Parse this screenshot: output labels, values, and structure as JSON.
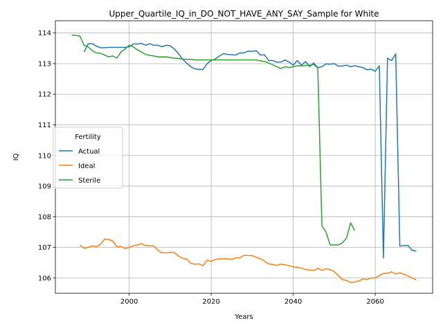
{
  "chart_data": {
    "type": "line",
    "title": "Upper_Quartile_IQ_in_DO_NOT_HAVE_ANY_SAY_Sample for White",
    "xlabel": "Years",
    "ylabel": "IQ",
    "xlim": [
      1982,
      2074
    ],
    "ylim": [
      105.5,
      114.4
    ],
    "xticks": [
      2000,
      2020,
      2040,
      2060
    ],
    "yticks": [
      106,
      107,
      108,
      109,
      110,
      111,
      112,
      113,
      114
    ],
    "grid": true,
    "legend": {
      "title": "Fertility",
      "position": "center-left"
    },
    "series": [
      {
        "name": "Actual",
        "color": "#1f77b4",
        "x": [
          1989,
          1990,
          1991,
          1992,
          1993,
          1994,
          1995,
          1996,
          1997,
          1998,
          1999,
          2000,
          2001,
          2002,
          2003,
          2004,
          2005,
          2006,
          2007,
          2008,
          2009,
          2010,
          2011,
          2012,
          2013,
          2014,
          2015,
          2016,
          2017,
          2018,
          2019,
          2020,
          2021,
          2022,
          2023,
          2024,
          2025,
          2026,
          2027,
          2028,
          2029,
          2030,
          2031,
          2032,
          2033,
          2034,
          2035,
          2036,
          2037,
          2038,
          2039,
          2040,
          2041,
          2042,
          2043,
          2044,
          2045,
          2046,
          2047,
          2048,
          2049,
          2050,
          2051,
          2052,
          2053,
          2054,
          2055,
          2056,
          2057,
          2058,
          2059,
          2060,
          2061,
          2062,
          2063,
          2064,
          2065,
          2066,
          2067,
          2068,
          2069,
          2070
        ],
        "y": [
          113.38,
          113.65,
          113.65,
          113.57,
          113.52,
          113.52,
          113.53,
          113.53,
          113.53,
          113.53,
          113.53,
          113.55,
          113.64,
          113.64,
          113.66,
          113.6,
          113.65,
          113.6,
          113.6,
          113.55,
          113.6,
          113.58,
          113.48,
          113.33,
          113.15,
          113.02,
          112.9,
          112.83,
          112.81,
          112.81,
          113.0,
          113.1,
          113.15,
          113.25,
          113.33,
          113.3,
          113.29,
          113.28,
          113.35,
          113.35,
          113.41,
          113.4,
          113.42,
          113.28,
          113.29,
          113.1,
          113.1,
          113.05,
          113.05,
          113.12,
          113.05,
          112.95,
          113.1,
          112.95,
          113.07,
          112.9,
          113.02,
          112.87,
          112.9,
          112.99,
          112.98,
          113.0,
          112.92,
          112.92,
          112.95,
          112.9,
          112.93,
          112.9,
          112.87,
          112.8,
          112.82,
          112.75,
          112.93,
          106.65,
          113.18,
          113.1,
          113.32,
          107.04,
          107.06,
          107.06,
          106.9,
          106.88
        ]
      },
      {
        "name": "Ideal",
        "color": "#ff7f0e",
        "x": [
          1988,
          1989,
          1990,
          1991,
          1992,
          1993,
          1994,
          1995,
          1996,
          1997,
          1998,
          1999,
          2000,
          2001,
          2002,
          2003,
          2004,
          2005,
          2006,
          2007,
          2008,
          2009,
          2010,
          2011,
          2012,
          2013,
          2014,
          2015,
          2016,
          2017,
          2018,
          2019,
          2020,
          2021,
          2022,
          2023,
          2024,
          2025,
          2026,
          2027,
          2028,
          2029,
          2030,
          2031,
          2032,
          2033,
          2034,
          2035,
          2036,
          2037,
          2038,
          2039,
          2040,
          2041,
          2042,
          2043,
          2044,
          2045,
          2046,
          2047,
          2048,
          2049,
          2050,
          2051,
          2052,
          2053,
          2054,
          2055,
          2056,
          2057,
          2058,
          2059,
          2060,
          2061,
          2062,
          2063,
          2064,
          2065,
          2066,
          2067,
          2068,
          2069,
          2070
        ],
        "y": [
          107.07,
          106.97,
          107.0,
          107.05,
          107.02,
          107.1,
          107.27,
          107.26,
          107.2,
          107.02,
          107.03,
          106.96,
          107.0,
          107.05,
          107.08,
          107.12,
          107.06,
          107.05,
          107.05,
          106.9,
          106.82,
          106.82,
          106.83,
          106.83,
          106.72,
          106.64,
          106.62,
          106.48,
          106.45,
          106.46,
          106.4,
          106.58,
          106.54,
          106.6,
          106.63,
          106.62,
          106.63,
          106.6,
          106.66,
          106.66,
          106.74,
          106.73,
          106.73,
          106.67,
          106.63,
          106.55,
          106.46,
          106.44,
          106.41,
          106.45,
          106.43,
          106.4,
          106.36,
          106.35,
          106.32,
          106.28,
          106.26,
          106.24,
          106.32,
          106.25,
          106.3,
          106.27,
          106.21,
          106.08,
          105.95,
          105.92,
          105.85,
          105.87,
          105.9,
          105.97,
          105.95,
          106.0,
          106.0,
          106.08,
          106.15,
          106.15,
          106.2,
          106.13,
          106.17,
          106.12,
          106.06,
          106.0,
          105.94
        ]
      },
      {
        "name": "Sterile",
        "color": "#2ca02c",
        "x": [
          1986,
          1987,
          1988,
          1989,
          1990,
          1991,
          1992,
          1993,
          1994,
          1995,
          1996,
          1997,
          1998,
          1999,
          2000,
          2001,
          2002,
          2003,
          2004,
          2005,
          2006,
          2007,
          2008,
          2009,
          2010,
          2011,
          2012,
          2013,
          2014,
          2015,
          2016,
          2017,
          2018,
          2019,
          2020,
          2021,
          2022,
          2023,
          2024,
          2025,
          2026,
          2027,
          2028,
          2029,
          2030,
          2031,
          2032,
          2033,
          2034,
          2035,
          2036,
          2037,
          2038,
          2039,
          2040,
          2041,
          2042,
          2043,
          2044,
          2045,
          2046,
          2047,
          2048,
          2049,
          2050,
          2051,
          2052,
          2053,
          2054,
          2055
        ],
        "y": [
          113.93,
          113.92,
          113.9,
          113.6,
          113.55,
          113.42,
          113.35,
          113.34,
          113.28,
          113.22,
          113.25,
          113.18,
          113.38,
          113.48,
          113.6,
          113.55,
          113.45,
          113.38,
          113.3,
          113.27,
          113.25,
          113.22,
          113.22,
          113.22,
          113.2,
          113.18,
          113.17,
          113.15,
          113.14,
          113.14,
          113.12,
          113.12,
          113.12,
          113.12,
          113.12,
          113.12,
          113.12,
          113.12,
          113.12,
          113.12,
          113.12,
          113.12,
          113.12,
          113.12,
          113.12,
          113.12,
          113.09,
          113.07,
          113.02,
          112.96,
          112.9,
          112.84,
          112.9,
          112.87,
          112.9,
          112.93,
          112.92,
          112.94,
          112.95,
          112.97,
          112.86,
          107.7,
          107.5,
          107.08,
          107.08,
          107.08,
          107.15,
          107.3,
          107.8,
          107.55
        ]
      }
    ]
  }
}
